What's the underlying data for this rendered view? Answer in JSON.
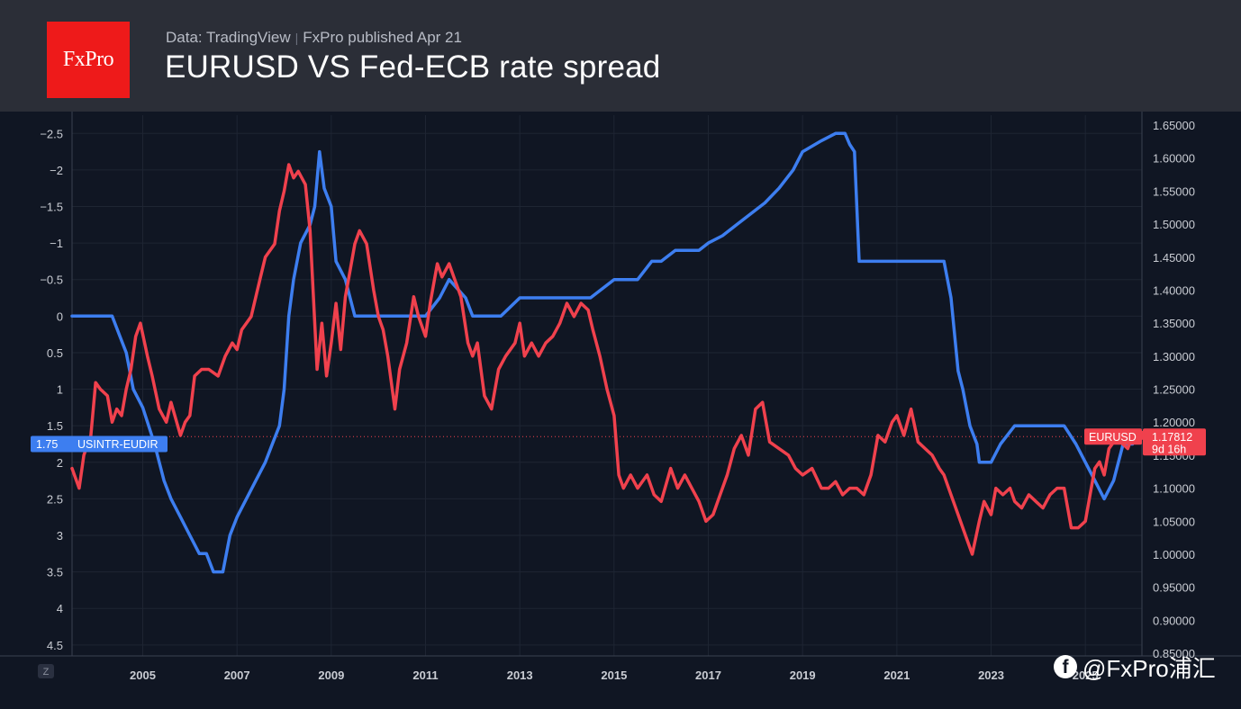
{
  "header": {
    "logo_text": "FxPro",
    "source": "Data: TradingView",
    "separator": "|",
    "publisher": "FxPro published Apr 21",
    "title": "EURUSD VS Fed-ECB rate spread"
  },
  "watermark": {
    "text": "@FxPro浦汇",
    "icon": "facebook-icon"
  },
  "chart_data": {
    "type": "line",
    "title": "EURUSD VS Fed-ECB rate spread",
    "x_range": [
      2003.5,
      2026.2
    ],
    "x_ticks": [
      "2005",
      "2007",
      "2009",
      "2011",
      "2013",
      "2015",
      "2017",
      "2019",
      "2021",
      "2023",
      "2025"
    ],
    "x_tick_values": [
      2005,
      2007,
      2009,
      2011,
      2013,
      2015,
      2017,
      2019,
      2021,
      2023,
      2025
    ],
    "left_axis": {
      "range": [
        -2.75,
        4.65
      ],
      "inverted": true,
      "ticks": [
        "−2.5",
        "−2",
        "−1.5",
        "−1",
        "−0.5",
        "0",
        "0.5",
        "1",
        "1.5",
        "2",
        "2.5",
        "3",
        "3.5",
        "4",
        "4.5"
      ],
      "tick_values": [
        -2.5,
        -2,
        -1.5,
        -1,
        -0.5,
        0,
        0.5,
        1,
        1.5,
        2,
        2.5,
        3,
        3.5,
        4,
        4.5
      ]
    },
    "right_axis": {
      "range": [
        0.846,
        1.665
      ],
      "ticks": [
        "1.65000",
        "1.60000",
        "1.55000",
        "1.50000",
        "1.45000",
        "1.40000",
        "1.35000",
        "1.30000",
        "1.25000",
        "1.20000",
        "1.15000",
        "1.10000",
        "1.05000",
        "1.00000",
        "0.95000",
        "0.90000",
        "0.85000"
      ],
      "tick_values": [
        1.65,
        1.6,
        1.55,
        1.5,
        1.45,
        1.4,
        1.35,
        1.3,
        1.25,
        1.2,
        1.15,
        1.1,
        1.05,
        1.0,
        0.95,
        0.9,
        0.85
      ]
    },
    "series": [
      {
        "name": "USINTR-EUDIR",
        "axis": "left",
        "color": "#3d7ef0",
        "last_value_label": "1.75",
        "x": [
          2003.5,
          2004.35,
          2004.5,
          2004.65,
          2004.8,
          2005.0,
          2005.25,
          2005.45,
          2005.6,
          2005.8,
          2006.0,
          2006.2,
          2006.35,
          2006.5,
          2006.7,
          2006.85,
          2007.0,
          2007.2,
          2007.4,
          2007.6,
          2007.75,
          2007.9,
          2008.0,
          2008.1,
          2008.2,
          2008.35,
          2008.55,
          2008.65,
          2008.75,
          2008.85,
          2009.0,
          2009.1,
          2009.3,
          2009.5,
          2010.0,
          2011.0,
          2011.3,
          2011.5,
          2011.85,
          2012.0,
          2012.6,
          2013.0,
          2014.0,
          2014.5,
          2015.0,
          2015.5,
          2015.8,
          2016.0,
          2016.3,
          2016.8,
          2017.0,
          2017.3,
          2017.6,
          2017.9,
          2018.2,
          2018.5,
          2018.8,
          2019.0,
          2019.4,
          2019.7,
          2019.9,
          2020.0,
          2020.1,
          2020.2,
          2021.0,
          2022.0,
          2022.15,
          2022.3,
          2022.4,
          2022.55,
          2022.7,
          2022.75,
          2022.85,
          2023.0,
          2023.2,
          2023.5,
          2024.0,
          2024.2,
          2024.4,
          2024.55,
          2024.8,
          2025.0,
          2025.2,
          2025.4,
          2025.6,
          2025.8,
          2026.0
        ],
        "y": [
          0,
          0,
          0.25,
          0.5,
          1.0,
          1.25,
          1.75,
          2.25,
          2.5,
          2.75,
          3.0,
          3.25,
          3.25,
          3.5,
          3.5,
          3.0,
          2.75,
          2.5,
          2.25,
          2.0,
          1.75,
          1.5,
          1.0,
          0.0,
          -0.5,
          -1.0,
          -1.25,
          -1.5,
          -2.25,
          -1.75,
          -1.5,
          -0.75,
          -0.5,
          0,
          0,
          0,
          -0.25,
          -0.5,
          -0.25,
          0,
          0,
          -0.25,
          -0.25,
          -0.25,
          -0.5,
          -0.5,
          -0.75,
          -0.75,
          -0.9,
          -0.9,
          -1.0,
          -1.1,
          -1.25,
          -1.4,
          -1.55,
          -1.75,
          -2.0,
          -2.25,
          -2.4,
          -2.5,
          -2.5,
          -2.35,
          -2.25,
          -0.75,
          -0.75,
          -0.75,
          -0.25,
          0.75,
          1.0,
          1.5,
          1.75,
          2.0,
          2.0,
          2.0,
          1.75,
          1.5,
          1.5,
          1.5,
          1.5,
          1.5,
          1.75,
          2.0,
          2.25,
          2.5,
          2.25,
          1.75,
          1.75
        ]
      },
      {
        "name": "EURUSD",
        "axis": "right",
        "color": "#f0414d",
        "last_value_label": "1.17812",
        "countdown_label": "9d 16h",
        "x": [
          2003.5,
          2003.65,
          2003.75,
          2003.9,
          2004.0,
          2004.1,
          2004.25,
          2004.35,
          2004.45,
          2004.55,
          2004.65,
          2004.75,
          2004.85,
          2004.95,
          2005.1,
          2005.2,
          2005.35,
          2005.5,
          2005.6,
          2005.8,
          2005.9,
          2006.0,
          2006.1,
          2006.25,
          2006.4,
          2006.6,
          2006.75,
          2006.9,
          2007.0,
          2007.1,
          2007.3,
          2007.5,
          2007.6,
          2007.8,
          2007.9,
          2008.0,
          2008.1,
          2008.2,
          2008.3,
          2008.45,
          2008.55,
          2008.7,
          2008.8,
          2008.9,
          2009.0,
          2009.1,
          2009.2,
          2009.3,
          2009.4,
          2009.5,
          2009.6,
          2009.75,
          2009.9,
          2010.0,
          2010.1,
          2010.2,
          2010.35,
          2010.45,
          2010.6,
          2010.75,
          2010.85,
          2011.0,
          2011.1,
          2011.25,
          2011.35,
          2011.5,
          2011.6,
          2011.75,
          2011.9,
          2012.0,
          2012.1,
          2012.25,
          2012.4,
          2012.55,
          2012.7,
          2012.9,
          2013.0,
          2013.1,
          2013.25,
          2013.4,
          2013.55,
          2013.7,
          2013.85,
          2014.0,
          2014.15,
          2014.3,
          2014.45,
          2014.55,
          2014.7,
          2014.85,
          2015.0,
          2015.1,
          2015.2,
          2015.35,
          2015.5,
          2015.7,
          2015.85,
          2016.0,
          2016.2,
          2016.35,
          2016.5,
          2016.65,
          2016.8,
          2016.95,
          2017.1,
          2017.25,
          2017.4,
          2017.55,
          2017.7,
          2017.85,
          2018.0,
          2018.15,
          2018.3,
          2018.5,
          2018.7,
          2018.85,
          2019.0,
          2019.2,
          2019.4,
          2019.55,
          2019.7,
          2019.85,
          2020.0,
          2020.15,
          2020.3,
          2020.45,
          2020.6,
          2020.75,
          2020.9,
          2021.0,
          2021.15,
          2021.3,
          2021.45,
          2021.6,
          2021.75,
          2021.9,
          2022.0,
          2022.15,
          2022.3,
          2022.45,
          2022.6,
          2022.75,
          2022.85,
          2023.0,
          2023.1,
          2023.25,
          2023.4,
          2023.5,
          2023.65,
          2023.8,
          2023.95,
          2024.1,
          2024.25,
          2024.4,
          2024.55,
          2024.7,
          2024.85,
          2025.0,
          2025.1,
          2025.2,
          2025.3,
          2025.4,
          2025.5,
          2025.6,
          2025.75,
          2025.9,
          2026.0,
          2026.1,
          2026.2
        ],
        "y": [
          1.13,
          1.1,
          1.15,
          1.18,
          1.26,
          1.25,
          1.24,
          1.2,
          1.22,
          1.21,
          1.25,
          1.28,
          1.33,
          1.35,
          1.3,
          1.27,
          1.22,
          1.2,
          1.23,
          1.18,
          1.2,
          1.21,
          1.27,
          1.28,
          1.28,
          1.27,
          1.3,
          1.32,
          1.31,
          1.34,
          1.36,
          1.42,
          1.45,
          1.47,
          1.52,
          1.55,
          1.59,
          1.57,
          1.58,
          1.56,
          1.49,
          1.28,
          1.35,
          1.27,
          1.32,
          1.38,
          1.31,
          1.39,
          1.43,
          1.47,
          1.49,
          1.47,
          1.4,
          1.36,
          1.34,
          1.3,
          1.22,
          1.28,
          1.32,
          1.39,
          1.36,
          1.33,
          1.38,
          1.44,
          1.42,
          1.44,
          1.42,
          1.39,
          1.32,
          1.3,
          1.32,
          1.24,
          1.22,
          1.28,
          1.3,
          1.32,
          1.35,
          1.3,
          1.32,
          1.3,
          1.32,
          1.33,
          1.35,
          1.38,
          1.36,
          1.38,
          1.37,
          1.34,
          1.3,
          1.25,
          1.21,
          1.12,
          1.1,
          1.12,
          1.1,
          1.12,
          1.09,
          1.08,
          1.13,
          1.1,
          1.12,
          1.1,
          1.08,
          1.05,
          1.06,
          1.09,
          1.12,
          1.16,
          1.18,
          1.15,
          1.22,
          1.23,
          1.17,
          1.16,
          1.15,
          1.13,
          1.12,
          1.13,
          1.1,
          1.1,
          1.11,
          1.09,
          1.1,
          1.1,
          1.09,
          1.12,
          1.18,
          1.17,
          1.2,
          1.21,
          1.18,
          1.22,
          1.17,
          1.16,
          1.15,
          1.13,
          1.12,
          1.09,
          1.06,
          1.03,
          1.0,
          1.05,
          1.08,
          1.06,
          1.1,
          1.09,
          1.1,
          1.08,
          1.07,
          1.09,
          1.08,
          1.07,
          1.09,
          1.1,
          1.1,
          1.04,
          1.04,
          1.05,
          1.09,
          1.13,
          1.14,
          1.12,
          1.16,
          1.17,
          1.17,
          1.16,
          1.18,
          1.17,
          1.18
        ]
      }
    ],
    "crosshair_value": 1.17812,
    "grid": true,
    "scale_button": "Z"
  }
}
